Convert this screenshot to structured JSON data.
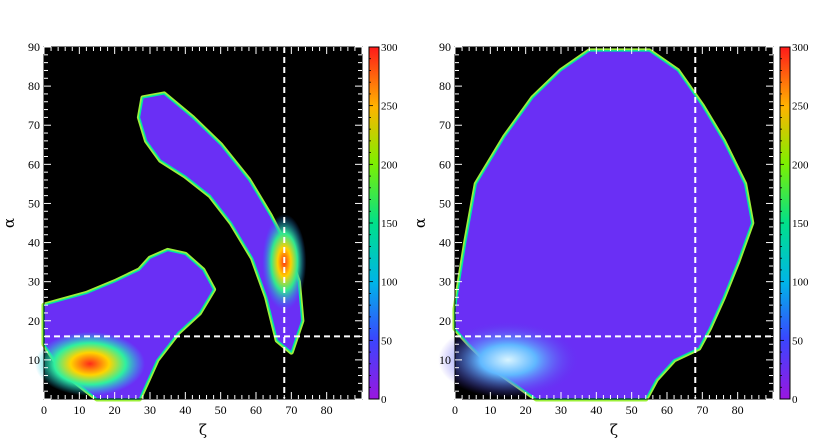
{
  "chart_data": [
    {
      "type": "heatmap",
      "xlabel": "ζ",
      "ylabel": "α",
      "xlim": [
        0,
        90
      ],
      "ylim": [
        0,
        90
      ],
      "x_ticks": [
        0,
        10,
        20,
        30,
        40,
        50,
        60,
        70,
        80
      ],
      "y_ticks": [
        10,
        20,
        30,
        40,
        50,
        60,
        70,
        80,
        90
      ],
      "background": "#000000",
      "reference_lines": {
        "vertical_x": 68,
        "horizontal_y": 16,
        "style": "dashed",
        "color": "#ffffff"
      },
      "colorbar": {
        "min": 0,
        "max": 300,
        "ticks": [
          0,
          50,
          100,
          150,
          200,
          250,
          300
        ]
      },
      "regions": [
        {
          "label": "lower-left band",
          "outline": [
            [
              0,
              24
            ],
            [
              4,
              25
            ],
            [
              12,
              27
            ],
            [
              20,
              30
            ],
            [
              27,
              33
            ],
            [
              30,
              36
            ],
            [
              35,
              38
            ],
            [
              40,
              37
            ],
            [
              45,
              33
            ],
            [
              48,
              28
            ],
            [
              44,
              22
            ],
            [
              38,
              17
            ],
            [
              32,
              10
            ],
            [
              29,
              4
            ],
            [
              27,
              0
            ],
            [
              15,
              0
            ],
            [
              8,
              5
            ],
            [
              3,
              10
            ],
            [
              0,
              14
            ]
          ],
          "core": {
            "center": [
              13,
              9
            ],
            "peak_value": 300
          }
        },
        {
          "label": "upper arc",
          "outline": [
            [
              28,
              77
            ],
            [
              34,
              78
            ],
            [
              42,
              72
            ],
            [
              50,
              65
            ],
            [
              58,
              56
            ],
            [
              64,
              47
            ],
            [
              68,
              40
            ],
            [
              72,
              30
            ],
            [
              73,
              20
            ],
            [
              70,
              12
            ],
            [
              66,
              15
            ],
            [
              63,
              26
            ],
            [
              59,
              36
            ],
            [
              53,
              45
            ],
            [
              47,
              52
            ],
            [
              40,
              57
            ],
            [
              33,
              61
            ],
            [
              29,
              66
            ],
            [
              27,
              72
            ]
          ],
          "core": {
            "center": [
              68,
              35
            ],
            "peak_value": 280
          }
        }
      ]
    },
    {
      "type": "heatmap",
      "xlabel": "ζ",
      "ylabel": "α",
      "xlim": [
        0,
        90
      ],
      "ylim": [
        0,
        90
      ],
      "x_ticks": [
        0,
        10,
        20,
        30,
        40,
        50,
        60,
        70,
        80
      ],
      "y_ticks": [
        10,
        20,
        30,
        40,
        50,
        60,
        70,
        80,
        90
      ],
      "background": "#000000",
      "reference_lines": {
        "vertical_x": 68,
        "horizontal_y": 16,
        "style": "dashed",
        "color": "#ffffff"
      },
      "colorbar": {
        "min": 0,
        "max": 300,
        "ticks": [
          0,
          50,
          100,
          150,
          200,
          250,
          300
        ]
      },
      "regions": [
        {
          "label": "broad region",
          "outline": [
            [
              0,
              23
            ],
            [
              3,
              40
            ],
            [
              6,
              55
            ],
            [
              14,
              67
            ],
            [
              22,
              77
            ],
            [
              30,
              84
            ],
            [
              38,
              89
            ],
            [
              55,
              89
            ],
            [
              63,
              84
            ],
            [
              70,
              75
            ],
            [
              76,
              66
            ],
            [
              82,
              55
            ],
            [
              84,
              45
            ],
            [
              80,
              35
            ],
            [
              76,
              26
            ],
            [
              72,
              18
            ],
            [
              69,
              13
            ],
            [
              62,
              10
            ],
            [
              57,
              5
            ],
            [
              54,
              0
            ],
            [
              23,
              0
            ],
            [
              12,
              7
            ],
            [
              4,
              14
            ],
            [
              0,
              18
            ]
          ],
          "core": {
            "center": [
              15,
              10
            ],
            "peak_value": 120
          }
        }
      ]
    }
  ]
}
